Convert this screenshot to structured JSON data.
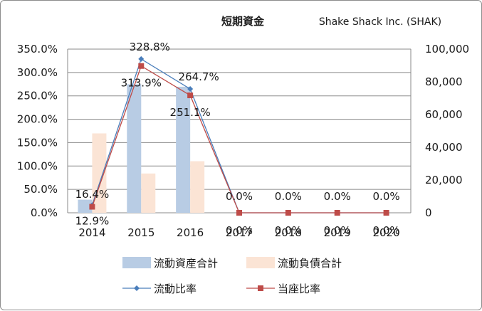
{
  "chart_data": {
    "type": "bar",
    "title": "短期資金",
    "subtitle": "Shake Shack Inc. (SHAK)",
    "categories": [
      "2014",
      "2015",
      "2016",
      "2017",
      "2018",
      "2019",
      "2020"
    ],
    "series": [
      {
        "name": "流動資産合計",
        "type": "bar",
        "axis": "right",
        "color": "#b8cce4",
        "values": [
          8000,
          78500,
          77000,
          0,
          0,
          0,
          0
        ]
      },
      {
        "name": "流動負債合計",
        "type": "bar",
        "axis": "right",
        "color": "#fbe4d5",
        "values": [
          48500,
          24000,
          31500,
          0,
          0,
          0,
          0
        ]
      },
      {
        "name": "流動比率",
        "type": "line",
        "axis": "left",
        "color": "#4a7ebb",
        "marker": "diamond",
        "values": [
          16.4,
          328.8,
          264.7,
          0.0,
          0.0,
          0.0,
          0.0
        ],
        "labels": [
          "16.4%",
          "328.8%",
          "264.7%",
          "0.0%",
          "0.0%",
          "0.0%",
          "0.0%"
        ]
      },
      {
        "name": "当座比率",
        "type": "line",
        "axis": "left",
        "color": "#be4b48",
        "marker": "square",
        "values": [
          12.9,
          313.9,
          251.1,
          0.0,
          0.0,
          0.0,
          0.0
        ],
        "labels": [
          "12.9%",
          "313.9%",
          "251.1%",
          "0.0%",
          "0.0%",
          "0.0%",
          "0.0%"
        ]
      }
    ],
    "left_axis": {
      "min": 0,
      "max": 350,
      "step": 50,
      "ticks": [
        "0.0%",
        "50.0%",
        "100.0%",
        "150.0%",
        "200.0%",
        "250.0%",
        "300.0%",
        "350.0%"
      ]
    },
    "right_axis": {
      "min": 0,
      "max": 100000,
      "step": 20000,
      "ticks": [
        "0",
        "20,000",
        "40,000",
        "60,000",
        "80,000",
        "100,000"
      ]
    },
    "grid": true,
    "legend_position": "bottom"
  }
}
